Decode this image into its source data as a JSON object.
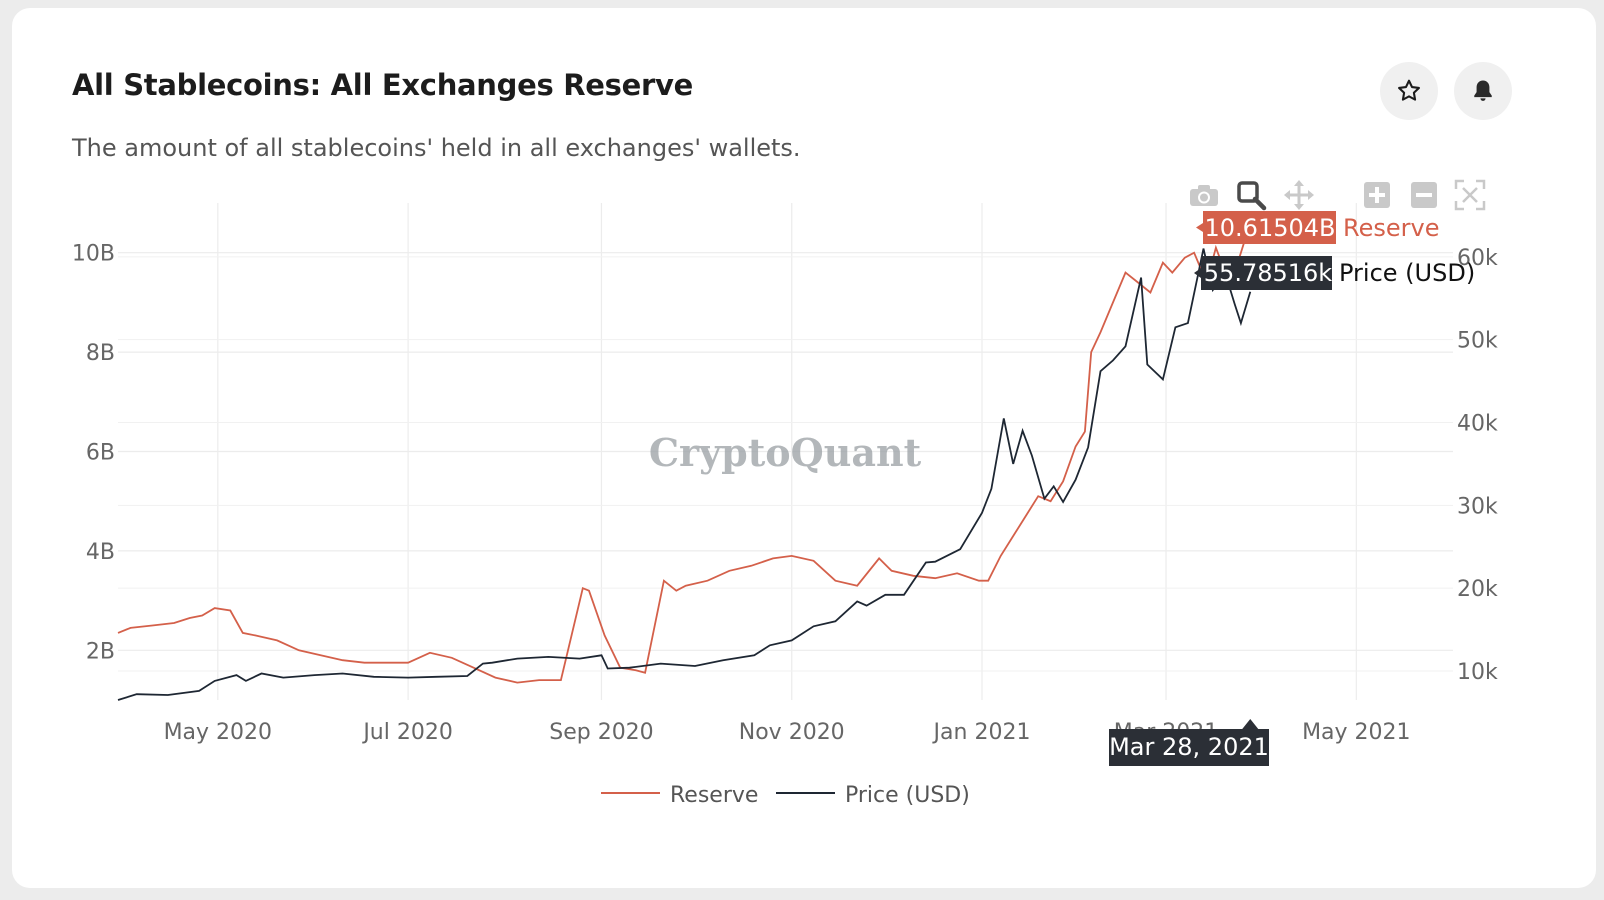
{
  "card": {
    "title": "All Stablecoins: All Exchanges Reserve",
    "subtitle": "The amount of all stablecoins' held in all exchanges' wallets."
  },
  "header_buttons": {
    "favorite_icon": "star-icon",
    "alert_icon": "bell-icon"
  },
  "toolbar": [
    "camera-icon",
    "zoom-icon",
    "pan-icon",
    "zoom-in-icon",
    "zoom-out-icon",
    "autoscale-icon"
  ],
  "watermark": "CryptoQuant",
  "hover": {
    "date": "Mar 28, 2021",
    "reserve_value": "10.61504B",
    "reserve_label": "Reserve",
    "price_value": "55.78516k",
    "price_label": "Price (USD)"
  },
  "colors": {
    "reserve": "#d4604a",
    "price": "#1e2733",
    "tooltip_dark": "#2b2f36"
  },
  "chart_data": {
    "type": "line",
    "x_range": [
      "2020-03-30",
      "2021-06-01"
    ],
    "x_ticks": [
      {
        "date": "2020-05-01",
        "label": "May 2020"
      },
      {
        "date": "2020-07-01",
        "label": "Jul 2020"
      },
      {
        "date": "2020-09-01",
        "label": "Sep 2020"
      },
      {
        "date": "2020-11-01",
        "label": "Nov 2020"
      },
      {
        "date": "2021-01-01",
        "label": "Jan 2021"
      },
      {
        "date": "2021-03-01",
        "label": "Mar 2021"
      },
      {
        "date": "2021-05-01",
        "label": "May 2021"
      }
    ],
    "y_left": {
      "range": [
        1.0,
        11.0
      ],
      "ticks": [
        2,
        4,
        6,
        8,
        10
      ],
      "tick_labels": [
        "2B",
        "4B",
        "6B",
        "8B",
        "10B"
      ]
    },
    "y_right": {
      "range": [
        6500,
        66500
      ],
      "ticks": [
        10000,
        20000,
        30000,
        40000,
        50000,
        60000
      ],
      "tick_labels": [
        "10k",
        "20k",
        "30k",
        "40k",
        "50k",
        "60k"
      ]
    },
    "grid": true,
    "legend_position": "bottom-center",
    "series": [
      {
        "name": "Reserve",
        "unit": "B",
        "axis": "left",
        "x": [
          "2020-03-30",
          "2020-04-03",
          "2020-04-10",
          "2020-04-17",
          "2020-04-22",
          "2020-04-26",
          "2020-04-30",
          "2020-05-05",
          "2020-05-09",
          "2020-05-13",
          "2020-05-20",
          "2020-05-27",
          "2020-06-03",
          "2020-06-10",
          "2020-06-17",
          "2020-06-24",
          "2020-07-01",
          "2020-07-08",
          "2020-07-15",
          "2020-07-22",
          "2020-07-29",
          "2020-08-05",
          "2020-08-12",
          "2020-08-19",
          "2020-08-26",
          "2020-08-28",
          "2020-09-02",
          "2020-09-07",
          "2020-09-12",
          "2020-09-15",
          "2020-09-21",
          "2020-09-25",
          "2020-09-28",
          "2020-10-05",
          "2020-10-12",
          "2020-10-19",
          "2020-10-26",
          "2020-11-01",
          "2020-11-08",
          "2020-11-15",
          "2020-11-22",
          "2020-11-29",
          "2020-12-03",
          "2020-12-10",
          "2020-12-17",
          "2020-12-24",
          "2020-12-31",
          "2021-01-03",
          "2021-01-07",
          "2021-01-11",
          "2021-01-15",
          "2021-01-19",
          "2021-01-23",
          "2021-01-27",
          "2021-01-31",
          "2021-02-03",
          "2021-02-05",
          "2021-02-08",
          "2021-02-12",
          "2021-02-16",
          "2021-02-20",
          "2021-02-24",
          "2021-02-28",
          "2021-03-03",
          "2021-03-07",
          "2021-03-10",
          "2021-03-14",
          "2021-03-17",
          "2021-03-20",
          "2021-03-24",
          "2021-03-26",
          "2021-03-28"
        ],
        "y": [
          2.35,
          2.45,
          2.5,
          2.55,
          2.65,
          2.7,
          2.85,
          2.8,
          2.35,
          2.3,
          2.2,
          2.0,
          1.9,
          1.8,
          1.75,
          1.75,
          1.75,
          1.95,
          1.85,
          1.65,
          1.45,
          1.35,
          1.4,
          1.4,
          3.25,
          3.2,
          2.3,
          1.65,
          1.6,
          1.55,
          3.4,
          3.2,
          3.3,
          3.4,
          3.6,
          3.7,
          3.85,
          3.9,
          3.8,
          3.4,
          3.3,
          3.85,
          3.6,
          3.5,
          3.45,
          3.55,
          3.4,
          3.4,
          3.9,
          4.3,
          4.7,
          5.1,
          5.0,
          5.4,
          6.1,
          6.4,
          8.0,
          8.4,
          9.0,
          9.6,
          9.4,
          9.2,
          9.8,
          9.6,
          9.9,
          10.0,
          9.4,
          10.1,
          9.6,
          9.8,
          10.2,
          10.61504
        ]
      },
      {
        "name": "Price (USD)",
        "unit": "k",
        "axis": "right",
        "x": [
          "2020-03-30",
          "2020-04-05",
          "2020-04-15",
          "2020-04-25",
          "2020-04-30",
          "2020-05-07",
          "2020-05-10",
          "2020-05-15",
          "2020-05-22",
          "2020-06-01",
          "2020-06-10",
          "2020-06-20",
          "2020-07-01",
          "2020-07-10",
          "2020-07-20",
          "2020-07-25",
          "2020-07-28",
          "2020-08-05",
          "2020-08-15",
          "2020-08-25",
          "2020-09-01",
          "2020-09-03",
          "2020-09-10",
          "2020-09-20",
          "2020-10-01",
          "2020-10-10",
          "2020-10-20",
          "2020-10-25",
          "2020-11-01",
          "2020-11-08",
          "2020-11-15",
          "2020-11-22",
          "2020-11-25",
          "2020-12-01",
          "2020-12-07",
          "2020-12-14",
          "2020-12-17",
          "2020-12-25",
          "2021-01-01",
          "2021-01-04",
          "2021-01-08",
          "2021-01-11",
          "2021-01-14",
          "2021-01-17",
          "2021-01-21",
          "2021-01-24",
          "2021-01-27",
          "2021-01-31",
          "2021-02-04",
          "2021-02-08",
          "2021-02-12",
          "2021-02-16",
          "2021-02-21",
          "2021-02-23",
          "2021-02-28",
          "2021-03-04",
          "2021-03-08",
          "2021-03-13",
          "2021-03-16",
          "2021-03-20",
          "2021-03-23",
          "2021-03-25",
          "2021-03-28"
        ],
        "y": [
          6500,
          7200,
          7100,
          7600,
          8800,
          9500,
          8800,
          9700,
          9200,
          9500,
          9700,
          9300,
          9200,
          9300,
          9400,
          10900,
          11000,
          11500,
          11700,
          11500,
          11900,
          10300,
          10400,
          10900,
          10600,
          11300,
          11900,
          13100,
          13700,
          15400,
          16000,
          18400,
          17900,
          19200,
          19200,
          23100,
          23200,
          24700,
          29100,
          32000,
          40500,
          35000,
          39000,
          36000,
          30800,
          32300,
          30400,
          33100,
          37000,
          46200,
          47500,
          49200,
          57500,
          47000,
          45200,
          51500,
          52000,
          61000,
          56000,
          58000,
          54300,
          52000,
          55785.16
        ]
      }
    ]
  }
}
